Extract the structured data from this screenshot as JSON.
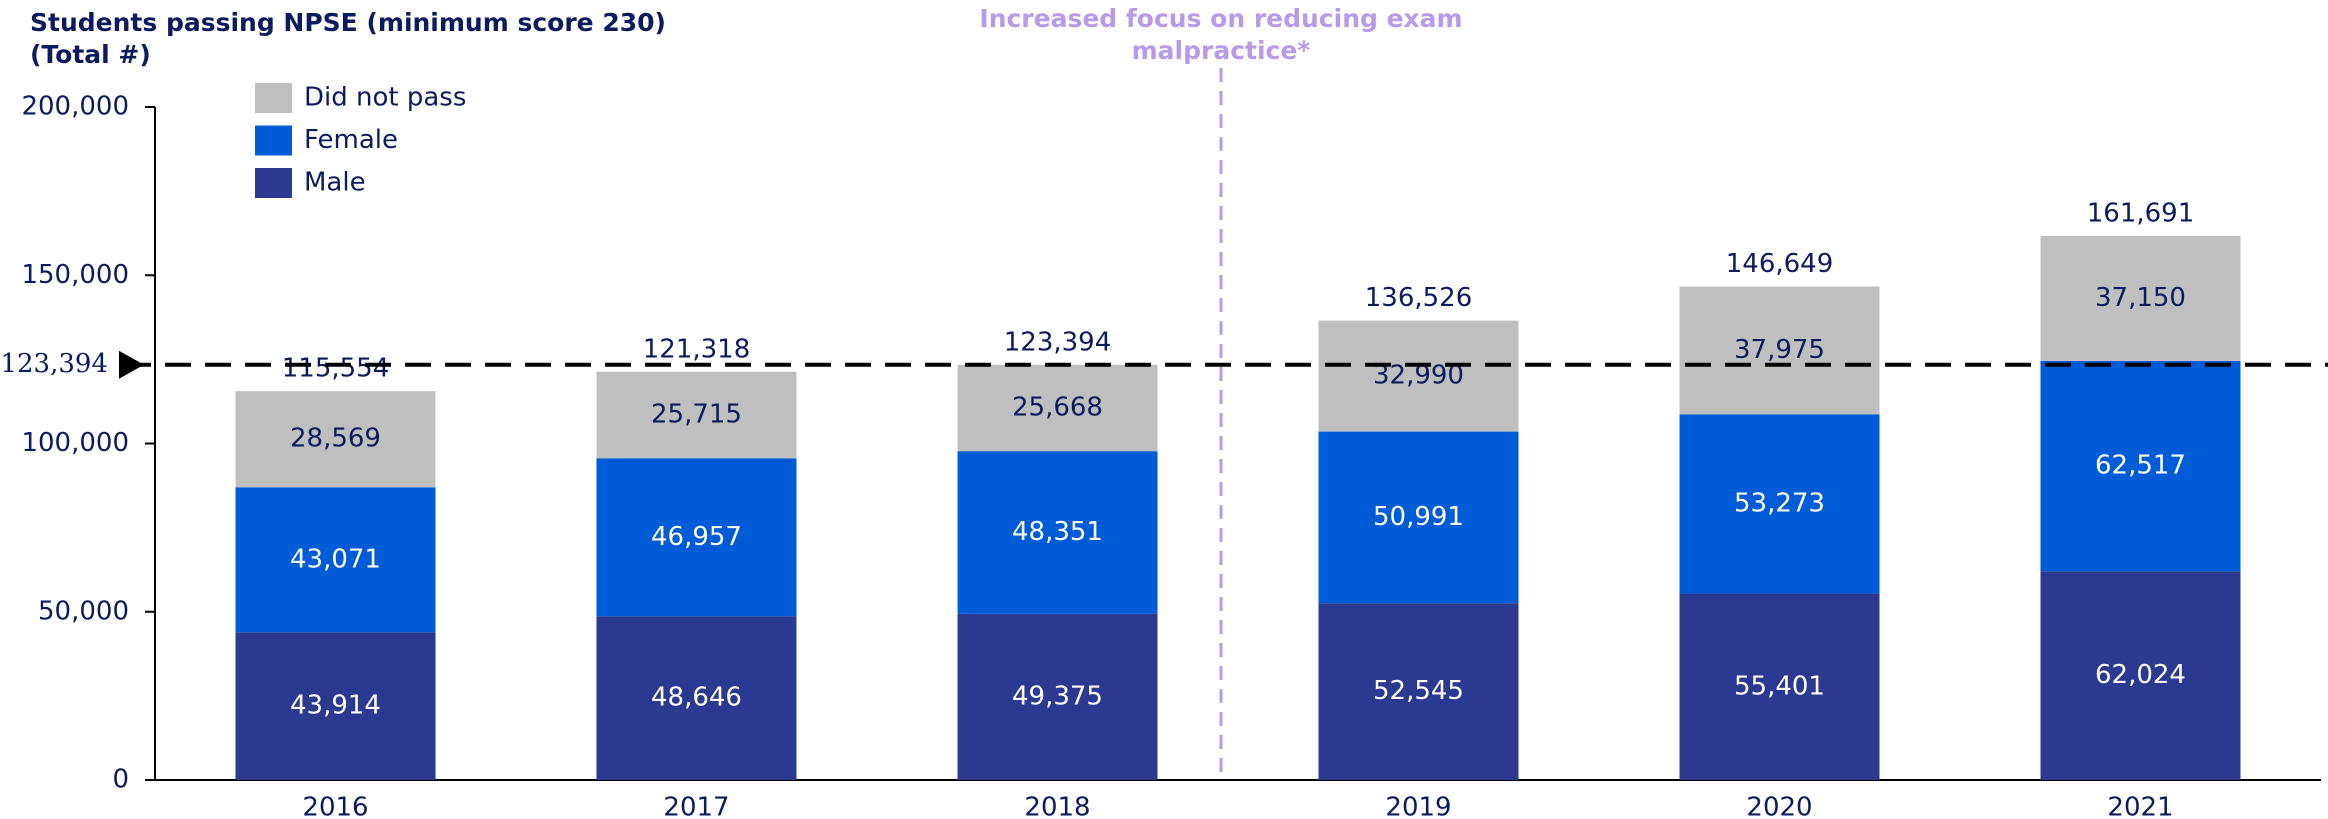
{
  "chart_data": {
    "type": "stacked_bar",
    "title_lines": [
      "Students passing NPSE (minimum score 230)",
      "(Total #)"
    ],
    "categories": [
      "2016",
      "2017",
      "2018",
      "2019",
      "2020",
      "2021"
    ],
    "series": [
      {
        "name": "Male",
        "color": "#2b3990",
        "label_color": "#ffffff",
        "values": [
          43914,
          48646,
          49375,
          52545,
          55401,
          62024
        ],
        "value_labels": [
          "43,914",
          "48,646",
          "49,375",
          "52,545",
          "55,401",
          "62,024"
        ]
      },
      {
        "name": "Female",
        "color": "#005cd6",
        "label_color": "#ffffff",
        "values": [
          43071,
          46957,
          48351,
          50991,
          53273,
          62517
        ],
        "value_labels": [
          "43,071",
          "46,957",
          "48,351",
          "50,991",
          "53,273",
          "62,517"
        ]
      },
      {
        "name": "Did not pass",
        "color": "#bfbfbf",
        "label_color": "#0d1b5e",
        "values": [
          28569,
          25715,
          25668,
          32990,
          37975,
          37150
        ],
        "value_labels": [
          "28,569",
          "25,715",
          "25,668",
          "32,990",
          "37,975",
          "37,150"
        ]
      }
    ],
    "totals": [
      115554,
      121318,
      123394,
      136526,
      146649,
      161691
    ],
    "total_labels": [
      "115,554",
      "121,318",
      "123,394",
      "136,526",
      "146,649",
      "161,691"
    ],
    "reference_line": {
      "value": 123394,
      "label": "123,394"
    },
    "annotation_lines": [
      "Increased focus on reducing exam",
      "malpractice*"
    ],
    "annotation_color": "#b79ae8",
    "ylim": [
      0,
      200000
    ],
    "yticks": [
      0,
      {
        "value": 50000,
        "label": "50,000"
      },
      {
        "value": 100000,
        "label": "100,000"
      },
      {
        "value": 150000,
        "label": "150,000"
      },
      {
        "value": 200000,
        "label": "200,000"
      }
    ],
    "grid": false
  }
}
